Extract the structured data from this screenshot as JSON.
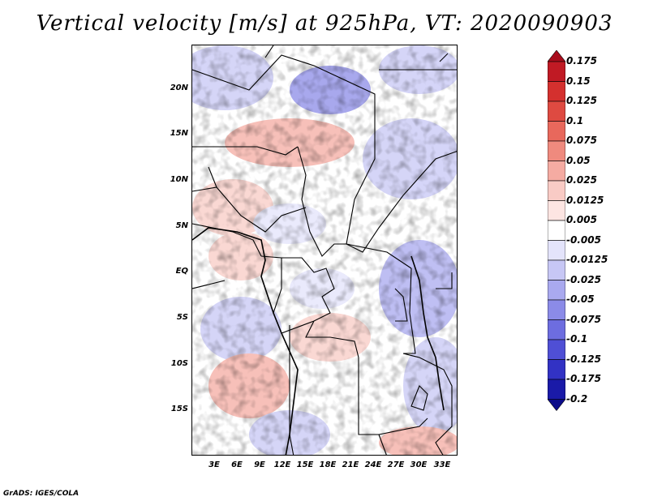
{
  "title": "Vertical velocity [m/s] at 925hPa, VT: 2020090903",
  "footer": "GrADS: IGES/COLA",
  "latitude_labels": [
    "20N",
    "15N",
    "10N",
    "5N",
    "EQ",
    "5S",
    "10S",
    "15S"
  ],
  "longitude_labels": [
    "3E",
    "6E",
    "9E",
    "12E",
    "15E",
    "18E",
    "21E",
    "24E",
    "27E",
    "30E",
    "33E"
  ],
  "colorbar": {
    "labels": [
      "0.175",
      "0.15",
      "0.125",
      "0.1",
      "0.075",
      "0.05",
      "0.025",
      "0.0125",
      "0.005",
      "-0.005",
      "-0.0125",
      "-0.025",
      "-0.05",
      "-0.075",
      "-0.1",
      "-0.125",
      "-0.175",
      "-0.2"
    ],
    "colors": [
      "#a80d1c",
      "#c01a24",
      "#d4302e",
      "#de4a41",
      "#e8685c",
      "#ef8a7e",
      "#f5aba2",
      "#f9cbc5",
      "#fde5e2",
      "#ffffff",
      "#e4e4fb",
      "#c7c7f5",
      "#a9a9ef",
      "#8b8be8",
      "#6d6de0",
      "#4f4fd5",
      "#3232c4",
      "#1a1aa8",
      "#0c0c8a"
    ]
  }
}
